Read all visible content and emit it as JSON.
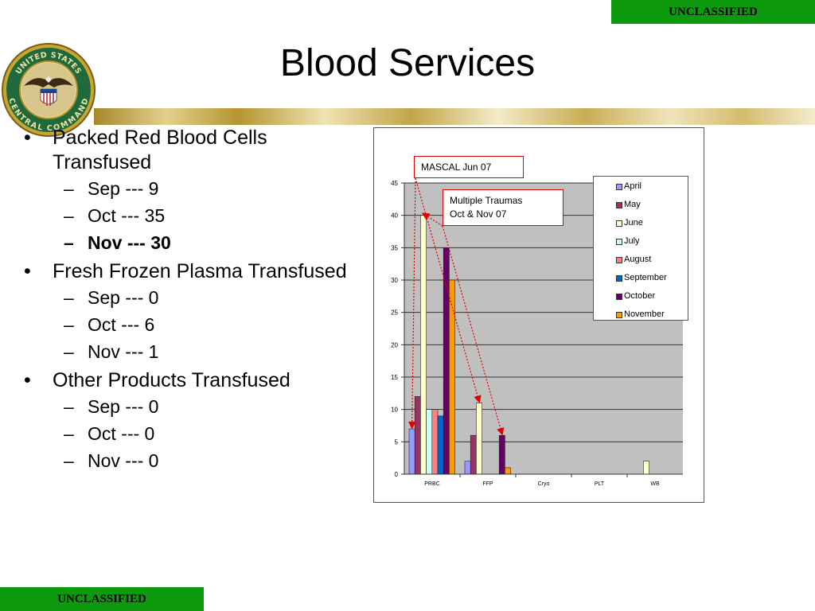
{
  "banners": {
    "top": "UNCLASSIFIED",
    "bottom": "UNCLASSIFIED"
  },
  "title": "Blood Services",
  "seal": {
    "text_top": "UNITED STATES",
    "text_bottom": "CENTRAL COMMAND"
  },
  "bullets": [
    {
      "label": "Packed Red Blood Cells Transfused",
      "items": [
        {
          "text": "Sep --- 9",
          "bold": false
        },
        {
          "text": "Oct --- 35",
          "bold": false
        },
        {
          "text": "Nov --- 30",
          "bold": true
        }
      ]
    },
    {
      "label": "Fresh Frozen Plasma Transfused",
      "items": [
        {
          "text": "Sep --- 0",
          "bold": false
        },
        {
          "text": "Oct --- 6",
          "bold": false
        },
        {
          "text": "Nov --- 1",
          "bold": false
        }
      ]
    },
    {
      "label": "Other Products Transfused",
      "items": [
        {
          "text": "Sep --- 0",
          "bold": false
        },
        {
          "text": "Oct --- 0",
          "bold": false
        },
        {
          "text": "Nov --- 0",
          "bold": false
        }
      ]
    }
  ],
  "callouts": {
    "mascal": "MASCAL Jun 07",
    "traumas_line1": "Multiple Traumas",
    "traumas_line2": "Oct & Nov 07"
  },
  "colors": {
    "banner": "#0e9a0e",
    "plot_bg": "#c0c0c0",
    "callout_border": "#e00000"
  },
  "chart_data": {
    "type": "bar",
    "title": "",
    "xlabel": "",
    "ylabel": "",
    "ylim": [
      0,
      45
    ],
    "yticks": [
      0,
      5,
      10,
      15,
      20,
      25,
      30,
      35,
      40,
      45
    ],
    "grid": true,
    "legend_position": "top-right",
    "categories": [
      "PRBC",
      "FFP",
      "Cryo",
      "PLT",
      "WB"
    ],
    "series": [
      {
        "name": "April",
        "color": "#9999ff",
        "values": [
          7,
          2,
          0,
          0,
          0
        ]
      },
      {
        "name": "May",
        "color": "#993366",
        "values": [
          12,
          6,
          0,
          0,
          0
        ]
      },
      {
        "name": "June",
        "color": "#ffffcc",
        "values": [
          40,
          11,
          0,
          0,
          2
        ]
      },
      {
        "name": "July",
        "color": "#ccffff",
        "values": [
          10,
          0,
          0,
          0,
          0
        ]
      },
      {
        "name": "August",
        "color": "#ff8080",
        "values": [
          10,
          0,
          0,
          0,
          0
        ]
      },
      {
        "name": "September",
        "color": "#0066cc",
        "values": [
          9,
          0,
          0,
          0,
          0
        ]
      },
      {
        "name": "October",
        "color": "#660066",
        "values": [
          35,
          6,
          0,
          0,
          0
        ]
      },
      {
        "name": "November",
        "color": "#ff9900",
        "values": [
          30,
          1,
          0,
          0,
          0
        ]
      }
    ]
  }
}
